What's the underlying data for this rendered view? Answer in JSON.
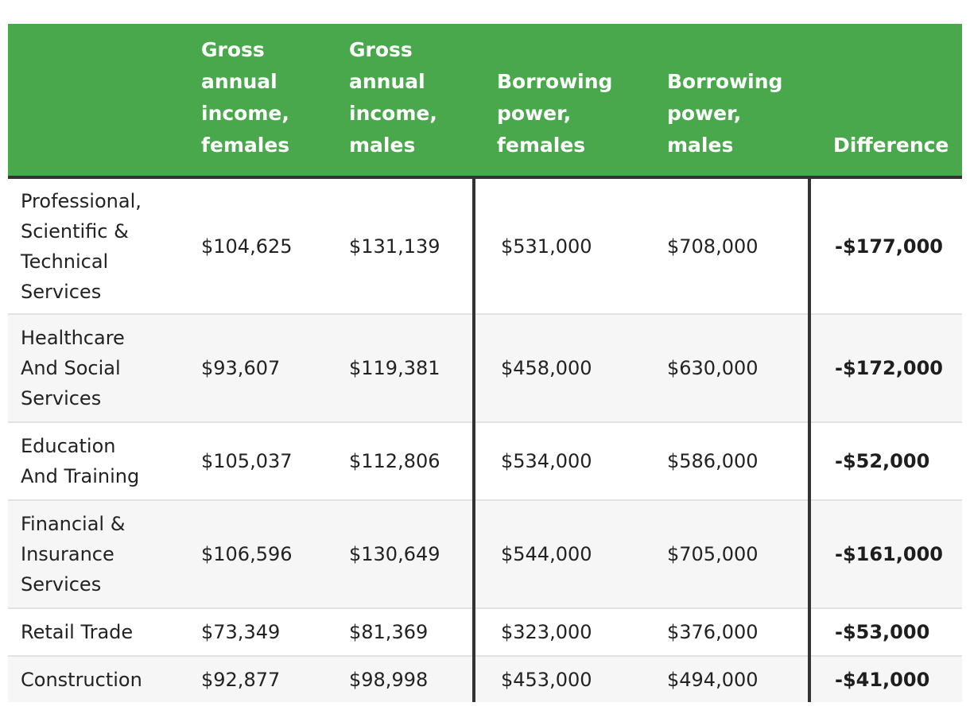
{
  "table": {
    "headers": [
      "",
      "Gross annual income, females",
      "Gross annual income, males",
      "Borrowing power, females",
      "Borrowing power, males",
      "Difference"
    ],
    "header_lines": [
      [],
      [
        "Gross",
        "annual",
        "income,",
        "females"
      ],
      [
        "Gross",
        "annual",
        "income,",
        "males"
      ],
      [
        "Borrowing",
        "power,",
        "females"
      ],
      [
        "Borrowing",
        "power,",
        "males"
      ],
      [
        "Difference"
      ]
    ],
    "rows": [
      {
        "industry_lines": [
          "Professional,",
          "Scientific &",
          "Technical",
          "Services"
        ],
        "gross_female": "$104,625",
        "gross_male": "$131,139",
        "borrow_female": "$531,000",
        "borrow_male": "$708,000",
        "difference": "-$177,000"
      },
      {
        "industry_lines": [
          "Healthcare",
          "And Social",
          "Services"
        ],
        "gross_female": "$93,607",
        "gross_male": "$119,381",
        "borrow_female": "$458,000",
        "borrow_male": "$630,000",
        "difference": "-$172,000"
      },
      {
        "industry_lines": [
          "Education",
          "And Training"
        ],
        "gross_female": "$105,037",
        "gross_male": "$112,806",
        "borrow_female": "$534,000",
        "borrow_male": "$586,000",
        "difference": "-$52,000"
      },
      {
        "industry_lines": [
          "Financial &",
          "Insurance",
          "Services"
        ],
        "gross_female": "$106,596",
        "gross_male": "$130,649",
        "borrow_female": "$544,000",
        "borrow_male": "$705,000",
        "difference": "-$161,000"
      },
      {
        "industry_lines": [
          "Retail Trade"
        ],
        "gross_female": "$73,349",
        "gross_male": "$81,369",
        "borrow_female": "$323,000",
        "borrow_male": "$376,000",
        "difference": "-$53,000"
      },
      {
        "industry_lines": [
          "Construction"
        ],
        "gross_female": "$92,877",
        "gross_male": "$98,998",
        "borrow_female": "$453,000",
        "borrow_male": "$494,000",
        "difference": "-$41,000"
      }
    ]
  },
  "colors": {
    "header_bg": "#4aa84c",
    "header_text": "#ffffff",
    "divider": "#333333",
    "stripe": "#f6f6f6"
  }
}
